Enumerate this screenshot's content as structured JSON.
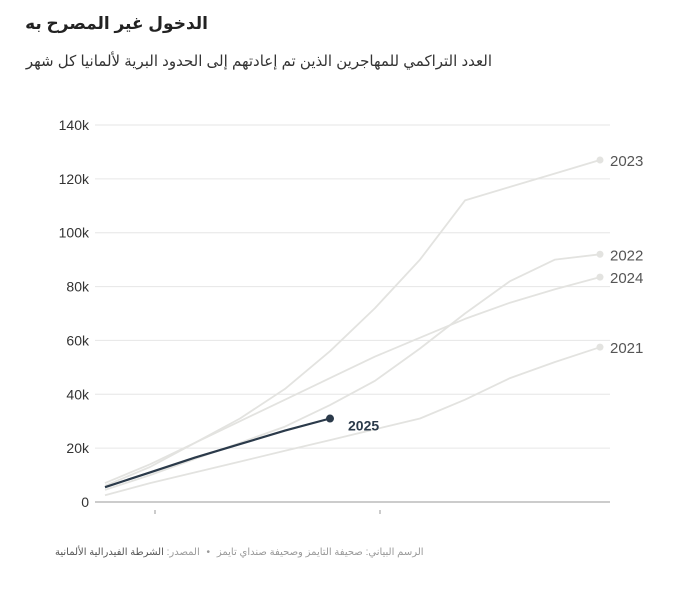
{
  "title": "الدخول غير المصرح به",
  "subtitle": "العدد التراكمي للمهاجرين الذين تم إعادتهم إلى الحدود البرية لألمانيا كل شهر",
  "footer": {
    "credit": "الرسم البياني: صحيفة التايمز وصحيفة صنداي تايمز",
    "separator": "•",
    "source_label": "المصدر:",
    "source_name": "الشرطة الفيدرالية الألمانية"
  },
  "colors": {
    "history": "#e3e3e0",
    "current": "#2b3a4a",
    "grid": "#e6e6e6",
    "label": "#555555"
  },
  "chart_data": {
    "type": "line",
    "months": 12,
    "ylim": [
      0,
      140000
    ],
    "yticks": [
      0,
      20000,
      40000,
      60000,
      80000,
      100000,
      120000,
      140000
    ],
    "ytick_labels": [
      "0",
      "20k",
      "40k",
      "60k",
      "80k",
      "100k",
      "120k",
      "140k"
    ],
    "series": [
      {
        "name": "2023",
        "current": false,
        "values": [
          6000,
          13000,
          22000,
          31000,
          42000,
          56000,
          72000,
          90000,
          112000,
          117000,
          122000,
          127000
        ]
      },
      {
        "name": "2022",
        "current": false,
        "values": [
          4500,
          10000,
          16000,
          22000,
          28000,
          36000,
          45000,
          57000,
          70000,
          82000,
          90000,
          92000
        ]
      },
      {
        "name": "2024",
        "current": false,
        "values": [
          7000,
          14000,
          22000,
          30000,
          38000,
          46000,
          54000,
          61000,
          68000,
          74000,
          79000,
          83500
        ]
      },
      {
        "name": "2021",
        "current": false,
        "values": [
          2500,
          7000,
          11000,
          15000,
          19000,
          23000,
          27000,
          31000,
          38000,
          46000,
          52000,
          57500
        ]
      },
      {
        "name": "2025",
        "current": true,
        "values": [
          5500,
          11000,
          16500,
          21500,
          26500,
          31000
        ]
      }
    ]
  }
}
